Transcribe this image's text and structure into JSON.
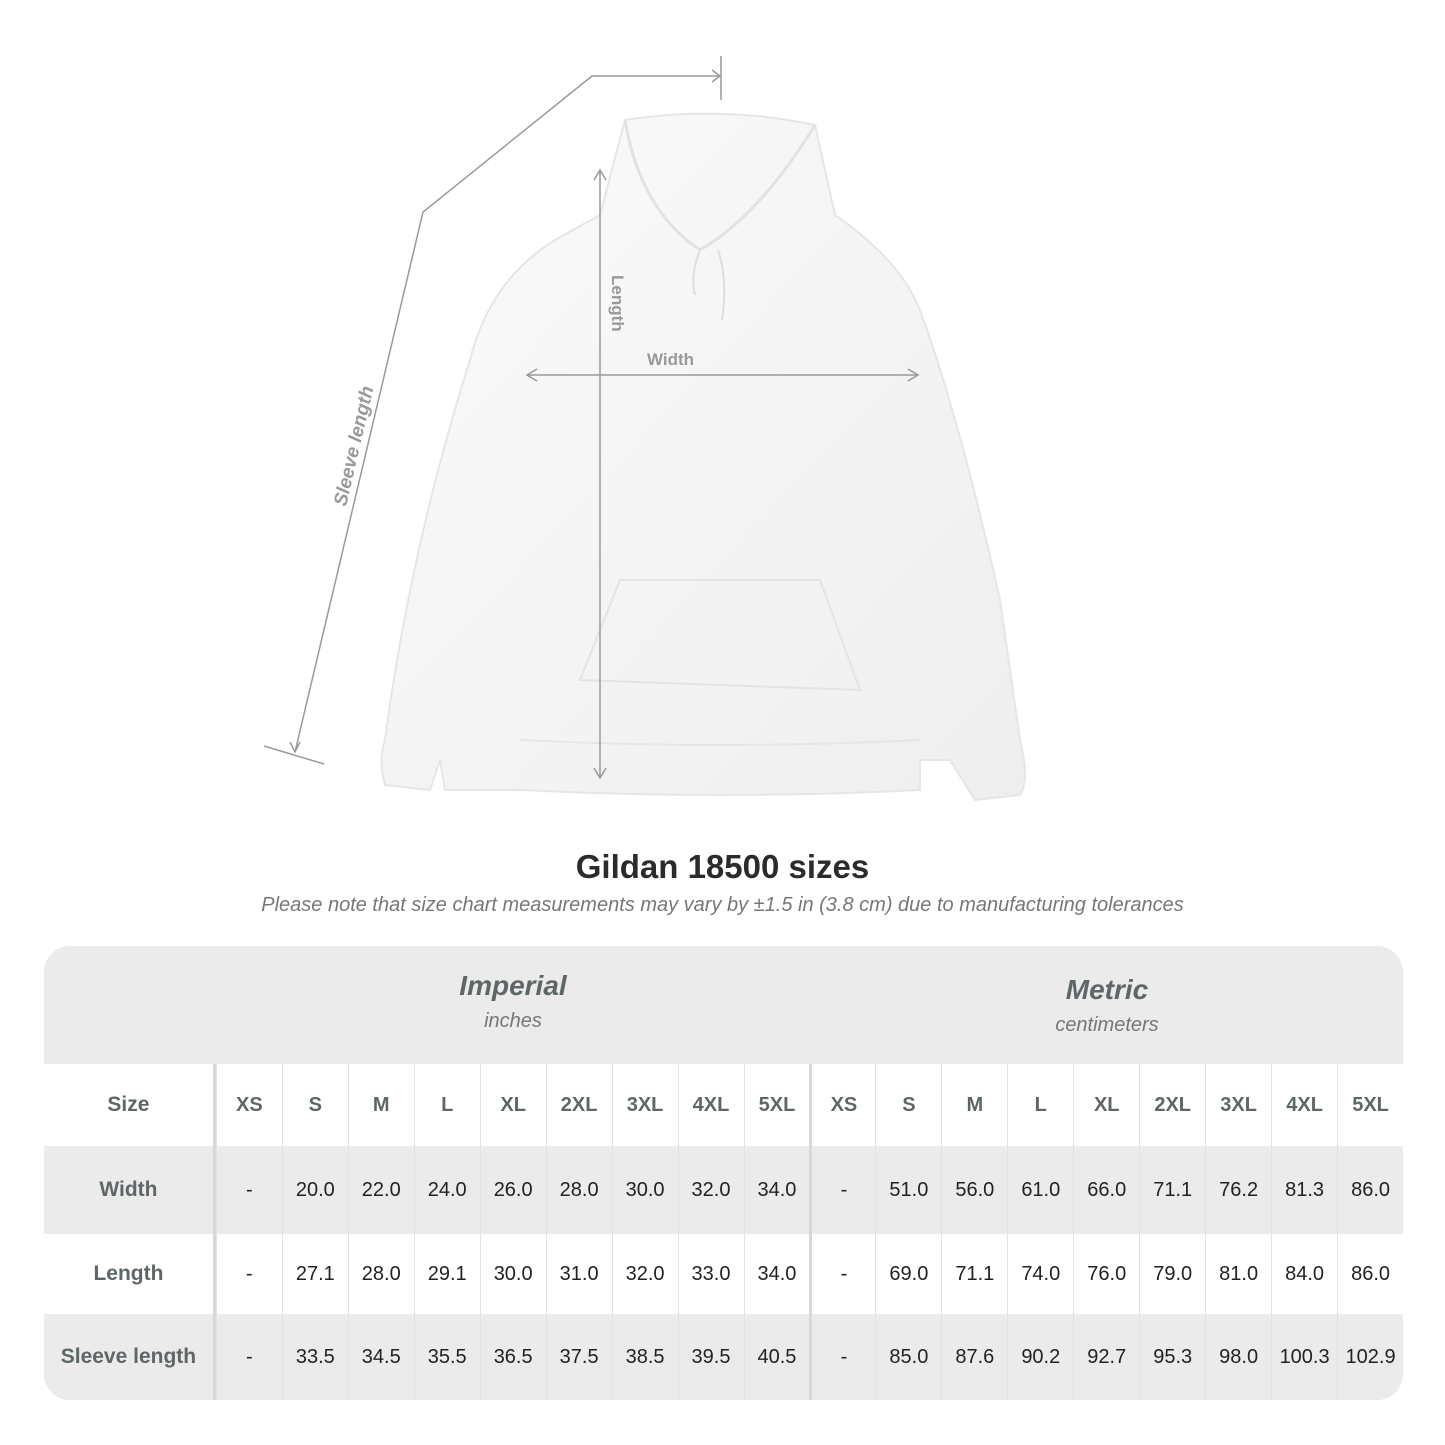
{
  "illustration": {
    "labels": {
      "length": "Length",
      "width": "Width",
      "sleeve": "Sleeve length"
    },
    "line_color": "#999999"
  },
  "title": "Gildan 18500 sizes",
  "note": "Please note that size chart measurements may vary by ±1.5 in (3.8 cm) due to manufacturing tolerances",
  "table": {
    "imperial": {
      "name": "Imperial",
      "unit": "inches"
    },
    "metric": {
      "name": "Metric",
      "unit": "centimeters"
    },
    "size_label": "Size",
    "sizes": [
      "XS",
      "S",
      "M",
      "L",
      "XL",
      "2XL",
      "3XL",
      "4XL",
      "5XL"
    ],
    "rows": [
      {
        "label": "Width",
        "imperial": [
          "-",
          "20.0",
          "22.0",
          "24.0",
          "26.0",
          "28.0",
          "30.0",
          "32.0",
          "34.0"
        ],
        "metric": [
          "-",
          "51.0",
          "56.0",
          "61.0",
          "66.0",
          "71.1",
          "76.2",
          "81.3",
          "86.0"
        ]
      },
      {
        "label": "Length",
        "imperial": [
          "-",
          "27.1",
          "28.0",
          "29.1",
          "30.0",
          "31.0",
          "32.0",
          "33.0",
          "34.0"
        ],
        "metric": [
          "-",
          "69.0",
          "71.1",
          "74.0",
          "76.0",
          "79.0",
          "81.0",
          "84.0",
          "86.0"
        ]
      },
      {
        "label": "Sleeve length",
        "imperial": [
          "-",
          "33.5",
          "34.5",
          "35.5",
          "36.5",
          "37.5",
          "38.5",
          "39.5",
          "40.5"
        ],
        "metric": [
          "-",
          "85.0",
          "87.6",
          "90.2",
          "92.7",
          "95.3",
          "98.0",
          "100.3",
          "102.9"
        ]
      }
    ]
  }
}
